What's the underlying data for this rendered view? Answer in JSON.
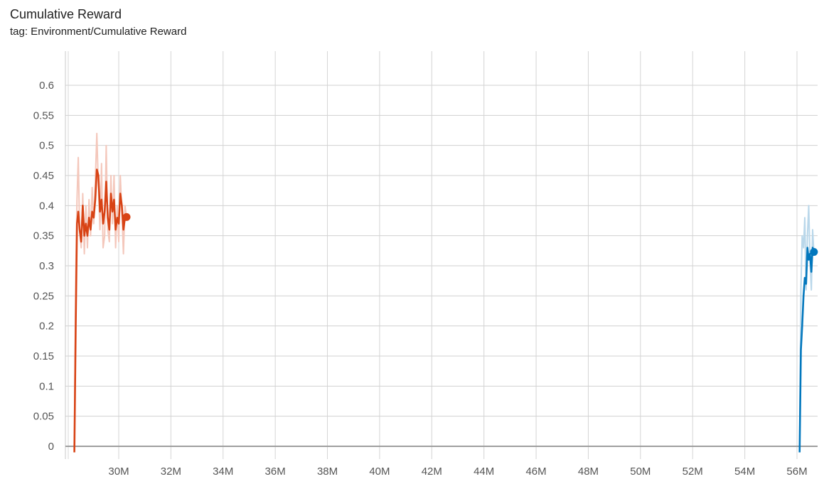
{
  "header": {
    "title": "Cumulative Reward",
    "subtitle": "tag: Environment/Cumulative Reward"
  },
  "chart_data": {
    "type": "line",
    "title": "Cumulative Reward",
    "xlabel": "",
    "ylabel": "",
    "xlim": [
      28000000,
      56800000
    ],
    "ylim": [
      -0.01,
      0.65
    ],
    "grid": true,
    "x_ticks": [
      30000000,
      32000000,
      34000000,
      36000000,
      38000000,
      40000000,
      42000000,
      44000000,
      46000000,
      48000000,
      50000000,
      52000000,
      54000000,
      56000000
    ],
    "x_tick_labels": [
      "30M",
      "32M",
      "34M",
      "36M",
      "38M",
      "40M",
      "42M",
      "44M",
      "46M",
      "48M",
      "50M",
      "52M",
      "54M",
      "56M"
    ],
    "y_ticks": [
      0,
      0.05,
      0.1,
      0.15,
      0.2,
      0.25,
      0.3,
      0.35,
      0.4,
      0.45,
      0.5,
      0.55,
      0.6
    ],
    "y_tick_labels": [
      "0",
      "0.05",
      "0.1",
      "0.15",
      "0.2",
      "0.25",
      "0.3",
      "0.35",
      "0.4",
      "0.45",
      "0.5",
      "0.55",
      "0.6"
    ],
    "series": [
      {
        "color": "#d84315",
        "raw_color": "#f4c7bb",
        "x": [
          28300000,
          28350000,
          28400000,
          28450000,
          28500000,
          28560000,
          28620000,
          28680000,
          28740000,
          28800000,
          28860000,
          28920000,
          28980000,
          29040000,
          29100000,
          29160000,
          29220000,
          29280000,
          29340000,
          29400000,
          29460000,
          29520000,
          29580000,
          29640000,
          29700000,
          29760000,
          29820000,
          29880000,
          29940000,
          30000000,
          30060000,
          30120000,
          30180000,
          30240000,
          30300000
        ],
        "values": [
          -0.01,
          0.2,
          0.37,
          0.39,
          0.36,
          0.34,
          0.4,
          0.35,
          0.37,
          0.35,
          0.38,
          0.36,
          0.39,
          0.38,
          0.41,
          0.46,
          0.45,
          0.39,
          0.41,
          0.37,
          0.39,
          0.44,
          0.38,
          0.36,
          0.42,
          0.39,
          0.41,
          0.36,
          0.38,
          0.37,
          0.42,
          0.4,
          0.36,
          0.38,
          0.381
        ],
        "raw_values": [
          -0.01,
          0.28,
          0.41,
          0.48,
          0.36,
          0.33,
          0.42,
          0.32,
          0.4,
          0.33,
          0.41,
          0.35,
          0.43,
          0.37,
          0.44,
          0.52,
          0.43,
          0.36,
          0.47,
          0.33,
          0.35,
          0.5,
          0.36,
          0.34,
          0.45,
          0.37,
          0.45,
          0.33,
          0.4,
          0.34,
          0.45,
          0.39,
          0.32,
          0.4,
          0.38
        ]
      },
      {
        "color": "#0277bd",
        "raw_color": "#b9d7ea",
        "x": [
          56100000,
          56150000,
          56200000,
          56250000,
          56300000,
          56350000,
          56400000,
          56450000,
          56500000,
          56550000,
          56600000,
          56650000
        ],
        "values": [
          -0.01,
          0.16,
          0.2,
          0.25,
          0.28,
          0.27,
          0.33,
          0.31,
          0.32,
          0.29,
          0.33,
          0.323
        ],
        "raw_values": [
          -0.01,
          0.26,
          0.35,
          0.33,
          0.38,
          0.26,
          0.35,
          0.4,
          0.31,
          0.26,
          0.36,
          0.32
        ]
      }
    ]
  }
}
